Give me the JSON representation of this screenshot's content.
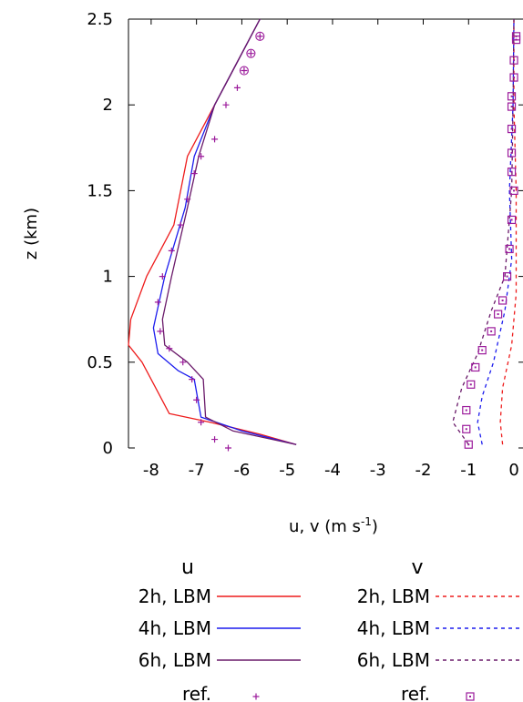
{
  "chart_data": {
    "type": "line",
    "xlabel": "u, v (m s",
    "xlabel_sup": "-1",
    "xlabel_end": ")",
    "ylabel": "z (km)",
    "xlim": [
      -8.5,
      0.2
    ],
    "ylim": [
      0,
      2.5
    ],
    "x_ticks": [
      -8,
      -7,
      -6,
      -5,
      -4,
      -3,
      -2,
      -1,
      0
    ],
    "x_tick_labels": [
      "-8",
      "-7",
      "-6",
      "-5",
      "-4",
      "-3",
      "-2",
      "-1",
      "0"
    ],
    "y_ticks": [
      0,
      0.5,
      1,
      1.5,
      2,
      2.5
    ],
    "y_tick_labels": [
      "0",
      "0.5",
      "1",
      "1.5",
      "2",
      "2.5"
    ],
    "grid": false,
    "legend_placement": "below",
    "legend_groups": [
      {
        "title": "u",
        "entries": [
          "2h, LBM",
          "4h, LBM",
          "6h, LBM",
          "ref."
        ]
      },
      {
        "title": "v",
        "entries": [
          "2h, LBM",
          "4h, LBM",
          "6h, LBM",
          "ref."
        ]
      }
    ],
    "series": [
      {
        "name": "2h, LBM",
        "group": "u",
        "color": "#ee1c1c",
        "style": "solid",
        "x": [
          -4.8,
          -5.6,
          -6.7,
          -7.6,
          -7.9,
          -8.2,
          -8.5,
          -8.45,
          -8.1,
          -7.5,
          -7.2,
          -6.6,
          -5.6
        ],
        "y": [
          0.02,
          0.08,
          0.15,
          0.2,
          0.35,
          0.5,
          0.6,
          0.75,
          1.0,
          1.3,
          1.7,
          2.0,
          2.5
        ]
      },
      {
        "name": "4h, LBM",
        "group": "u",
        "color": "#1c1cee",
        "style": "solid",
        "x": [
          -4.8,
          -6.0,
          -6.9,
          -7.05,
          -7.4,
          -7.85,
          -7.95,
          -7.7,
          -7.25,
          -7.05,
          -6.6,
          -5.6
        ],
        "y": [
          0.02,
          0.1,
          0.18,
          0.4,
          0.45,
          0.55,
          0.7,
          1.0,
          1.4,
          1.7,
          2.0,
          2.5
        ]
      },
      {
        "name": "6h, LBM",
        "group": "u",
        "color": "#6a1a6a",
        "style": "solid",
        "x": [
          -4.8,
          -6.2,
          -6.8,
          -6.85,
          -7.2,
          -7.7,
          -7.75,
          -7.55,
          -7.2,
          -6.95,
          -6.6,
          -5.6
        ],
        "y": [
          0.02,
          0.1,
          0.18,
          0.4,
          0.5,
          0.6,
          0.75,
          1.0,
          1.4,
          1.7,
          2.0,
          2.5
        ]
      },
      {
        "name": "ref.",
        "group": "u",
        "color": "#9b1a9b",
        "style": "plus",
        "x": [
          -6.3,
          -6.6,
          -6.9,
          -7.0,
          -7.1,
          -7.3,
          -7.6,
          -7.8,
          -7.85,
          -7.75,
          -7.55,
          -7.35,
          -7.2,
          -7.05,
          -6.9,
          -6.6,
          -6.35,
          -6.1,
          -5.95,
          -5.8,
          -5.6
        ],
        "y": [
          0.0,
          0.05,
          0.15,
          0.28,
          0.4,
          0.5,
          0.58,
          0.68,
          0.85,
          1.0,
          1.15,
          1.3,
          1.45,
          1.6,
          1.7,
          1.8,
          2.0,
          2.1,
          2.2,
          2.3,
          2.4
        ]
      },
      {
        "name": "2h, LBM",
        "group": "v",
        "color": "#ee1c1c",
        "style": "dashed",
        "x": [
          -0.25,
          -0.3,
          -0.25,
          -0.05,
          0.05,
          0.05,
          0.0,
          0.0
        ],
        "y": [
          0.02,
          0.15,
          0.35,
          0.6,
          0.9,
          1.5,
          2.0,
          2.5
        ]
      },
      {
        "name": "4h, LBM",
        "group": "v",
        "color": "#1c1cee",
        "style": "dashed",
        "x": [
          -0.7,
          -0.8,
          -0.7,
          -0.45,
          -0.2,
          -0.05,
          -0.1,
          -0.02,
          0.0
        ],
        "y": [
          0.02,
          0.15,
          0.3,
          0.5,
          0.8,
          1.1,
          1.5,
          2.0,
          2.5
        ]
      },
      {
        "name": "6h, LBM",
        "group": "v",
        "color": "#6a1a6a",
        "style": "dashed",
        "x": [
          -1.0,
          -1.35,
          -1.15,
          -0.8,
          -0.5,
          -0.2,
          -0.05,
          -0.02,
          0.0
        ],
        "y": [
          0.02,
          0.15,
          0.35,
          0.55,
          0.8,
          1.0,
          1.5,
          2.0,
          2.5
        ]
      },
      {
        "name": "ref.",
        "group": "v",
        "color": "#9b1a9b",
        "style": "square",
        "x": [
          -1.0,
          -1.05,
          -1.05,
          -0.95,
          -0.85,
          -0.7,
          -0.5,
          -0.35,
          -0.25,
          -0.15,
          -0.1,
          -0.05,
          0.0,
          -0.05,
          -0.05,
          -0.05,
          -0.05,
          -0.05,
          0.0,
          0.0,
          0.05,
          0.05
        ],
        "y": [
          0.02,
          0.11,
          0.22,
          0.37,
          0.47,
          0.57,
          0.68,
          0.78,
          0.86,
          1.0,
          1.16,
          1.33,
          1.5,
          1.61,
          1.72,
          1.86,
          1.99,
          2.05,
          2.16,
          2.26,
          2.38,
          2.4
        ]
      }
    ]
  }
}
